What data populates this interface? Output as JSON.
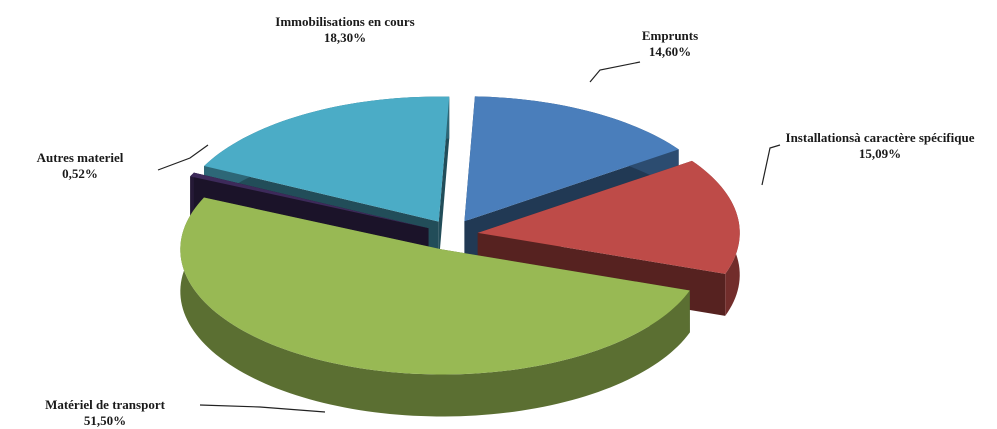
{
  "chart_data": {
    "type": "pie3d",
    "categories": [
      "Emprunts",
      "Installationsà caractère spécifique",
      "Matériel de transport",
      "Autres materiel",
      "Immobilisations en cours"
    ],
    "values": [
      14.6,
      15.09,
      51.5,
      0.52,
      18.3
    ],
    "value_labels": [
      "14,60%",
      "15,09%",
      "51,50%",
      "0,52%",
      "18,30%"
    ],
    "colors": [
      "#4a7ebb",
      "#be4b48",
      "#98b954",
      "#3d2a5a",
      "#4bacc6"
    ]
  }
}
